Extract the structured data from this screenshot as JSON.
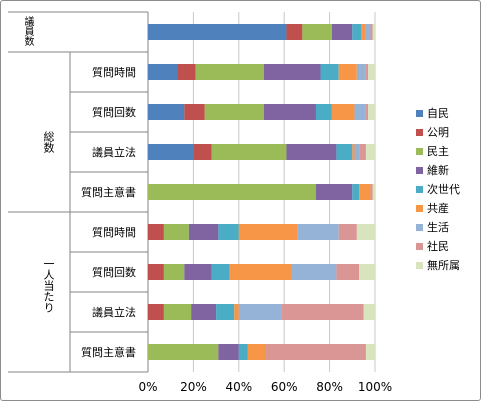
{
  "chart_data": {
    "type": "bar",
    "stacked": "percent",
    "orientation": "horizontal",
    "group_labels": [
      "議員数",
      "総数",
      "一人当たり"
    ],
    "categories": [
      "議員数",
      "質問時間",
      "質問回数",
      "議員立法",
      "質問主意書",
      "質問時間",
      "質問回数",
      "議員立法",
      "質問主意書"
    ],
    "category_group": [
      0,
      1,
      1,
      1,
      1,
      2,
      2,
      2,
      2
    ],
    "series": [
      {
        "name": "自民",
        "color": "#4f81bd",
        "values": [
          61,
          13,
          16,
          20,
          0,
          0,
          0,
          0,
          0
        ]
      },
      {
        "name": "公明",
        "color": "#c0504d",
        "values": [
          7,
          8,
          9,
          8,
          0,
          7,
          7,
          7,
          0
        ]
      },
      {
        "name": "民主",
        "color": "#9bbb59",
        "values": [
          13,
          30,
          26,
          33,
          74,
          11,
          9,
          12,
          31
        ]
      },
      {
        "name": "維新",
        "color": "#8064a2",
        "values": [
          9,
          25,
          23,
          22,
          16,
          13,
          12,
          11,
          9
        ]
      },
      {
        "name": "次世代",
        "color": "#4bacc6",
        "values": [
          4,
          8,
          7,
          7,
          3,
          9,
          8,
          8,
          4
        ]
      },
      {
        "name": "共産",
        "color": "#f79646",
        "values": [
          2,
          8,
          10,
          1,
          5,
          26,
          27,
          2,
          8
        ]
      },
      {
        "name": "生活",
        "color": "#95b3d7",
        "values": [
          2,
          4,
          5,
          2,
          0,
          18,
          20,
          19,
          0
        ]
      },
      {
        "name": "社民",
        "color": "#da9694",
        "values": [
          1,
          1,
          1,
          3,
          1,
          8,
          10,
          36,
          44
        ]
      },
      {
        "name": "無所属",
        "color": "#d7e4bd",
        "values": [
          1,
          3,
          3,
          4,
          1,
          8,
          7,
          5,
          4
        ]
      }
    ],
    "xaxis": {
      "ticks": [
        "0%",
        "20%",
        "40%",
        "60%",
        "80%",
        "100%"
      ],
      "range": [
        0,
        100
      ]
    },
    "grid": true,
    "legend": "right"
  }
}
